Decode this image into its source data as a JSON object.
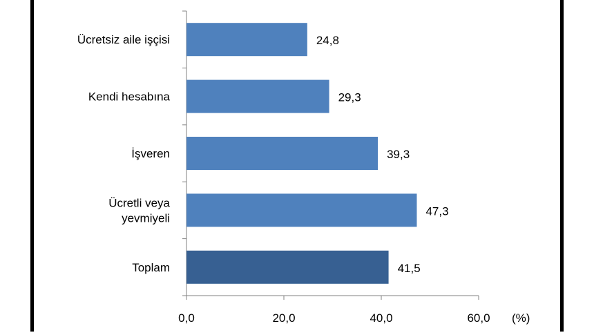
{
  "colors": {
    "bar": "#4F81BD",
    "bar_highlight": "#376092",
    "border": "#000000",
    "background": "#ffffff",
    "text": "#000000"
  },
  "chart_data": {
    "type": "bar",
    "orientation": "horizontal",
    "title": "",
    "xlabel": "",
    "ylabel": "",
    "unit": "(%)",
    "categories": [
      "Ücretsiz aile işçisi",
      "Kendi hesabına",
      "İşveren",
      "Ücretli veya yevmiyeli",
      "Toplam"
    ],
    "category_lines": [
      [
        "Ücretsiz aile işçisi"
      ],
      [
        "Kendi hesabına"
      ],
      [
        "İşveren"
      ],
      [
        "Ücretli veya",
        "yevmiyeli"
      ],
      [
        "Toplam"
      ]
    ],
    "values": [
      24.8,
      29.3,
      39.3,
      47.3,
      41.5
    ],
    "value_labels": [
      "24,8",
      "29,3",
      "39,3",
      "47,3",
      "41,5"
    ],
    "highlighted": [
      false,
      false,
      false,
      false,
      true
    ],
    "xlim": [
      0,
      60
    ],
    "xticks": [
      0,
      20,
      40,
      60
    ],
    "xtick_labels": [
      "0,0",
      "20,0",
      "40,0",
      "60,0"
    ],
    "grid": false,
    "legend": "none"
  }
}
